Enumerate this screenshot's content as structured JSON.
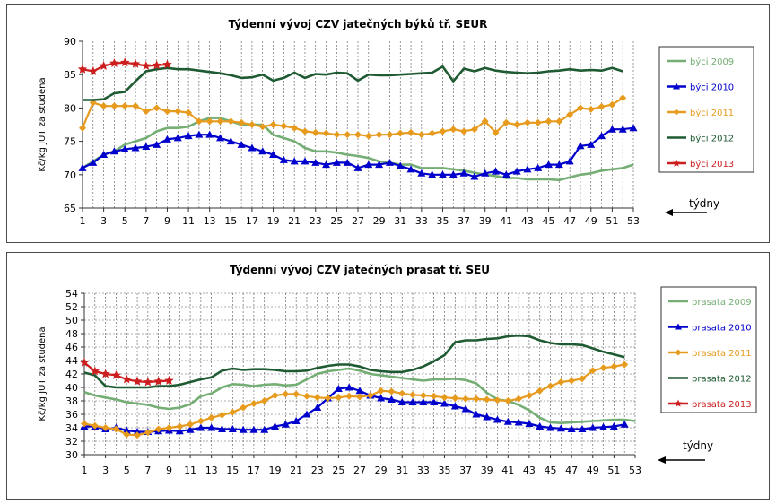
{
  "chart_data": [
    {
      "type": "line",
      "title": "Týdenní vývoj CZV jatečných býků tř. SEUR",
      "ylabel": "Kč/kg JUT za studena",
      "xlabel": "",
      "annotation": "týdny",
      "ylim": [
        65,
        90
      ],
      "yticks": [
        65,
        70,
        75,
        80,
        85,
        90
      ],
      "xlim": [
        1,
        53
      ],
      "xticks": [
        1,
        3,
        5,
        7,
        9,
        11,
        13,
        15,
        17,
        19,
        21,
        23,
        25,
        27,
        29,
        31,
        33,
        35,
        37,
        39,
        41,
        43,
        45,
        47,
        49,
        51,
        53
      ],
      "grid": "vertical dashed",
      "legend": "right",
      "series": [
        {
          "name": "býci 2009",
          "color": "#74ae74",
          "marker": "none",
          "values": [
            71,
            72,
            73,
            73.5,
            74.5,
            75,
            75.5,
            76.5,
            77,
            77,
            77.2,
            78,
            78.5,
            78.5,
            78,
            77.5,
            77.5,
            77.5,
            76,
            75.5,
            75,
            74,
            73.5,
            73.5,
            73.3,
            73,
            72.8,
            72.5,
            72,
            71.8,
            71.5,
            71.5,
            71,
            71,
            71,
            70.8,
            70.6,
            70.3,
            70,
            69.8,
            69.5,
            69.5,
            69.3,
            69.3,
            69.3,
            69.2,
            69.6,
            70,
            70.2,
            70.6,
            70.8,
            71,
            71.5
          ]
        },
        {
          "name": "býci 2010",
          "color": "#0000cc",
          "marker": "triangle",
          "values": [
            71,
            71.8,
            73,
            73.5,
            73.8,
            74,
            74.2,
            74.5,
            75.3,
            75.5,
            75.8,
            76,
            76,
            75.5,
            75,
            74.5,
            74,
            73.5,
            73,
            72.2,
            72,
            72,
            71.8,
            71.5,
            71.8,
            71.8,
            71,
            71.5,
            71.5,
            71.8,
            71.3,
            70.8,
            70.2,
            70,
            70,
            70,
            70.2,
            69.7,
            70.2,
            70.5,
            70,
            70.5,
            70.8,
            71,
            71.5,
            71.5,
            72,
            74.3,
            74.5,
            75.8,
            76.8,
            76.8,
            77
          ]
        },
        {
          "name": "býci 2011",
          "color": "#e69b1e",
          "marker": "diamond",
          "values": [
            77,
            80.8,
            80.3,
            80.3,
            80.3,
            80.3,
            79.5,
            80,
            79.5,
            79.5,
            79.3,
            78,
            78,
            78,
            78,
            77.8,
            77.5,
            77.2,
            77.5,
            77.3,
            77,
            76.5,
            76.3,
            76.2,
            76,
            76,
            76,
            75.8,
            76,
            76,
            76.2,
            76.3,
            76,
            76.2,
            76.5,
            76.8,
            76.5,
            76.8,
            78,
            76.3,
            77.8,
            77.5,
            77.8,
            77.8,
            78,
            78,
            79,
            80,
            79.8,
            80.2,
            80.5,
            81.5
          ]
        },
        {
          "name": "býci 2012",
          "color": "#1e5a32",
          "marker": "none",
          "values": [
            81.2,
            81.2,
            81.3,
            82.2,
            82.4,
            84,
            85.5,
            85.8,
            86,
            85.8,
            85.8,
            85.6,
            85.4,
            85.2,
            84.9,
            84.5,
            84.6,
            85,
            84.1,
            84.5,
            85.3,
            84.5,
            85.1,
            85,
            85.3,
            85.2,
            84.1,
            85,
            84.9,
            84.9,
            85,
            85.1,
            85.2,
            85.3,
            86.2,
            84,
            85.9,
            85.5,
            86,
            85.6,
            85.4,
            85.3,
            85.2,
            85.3,
            85.5,
            85.6,
            85.8,
            85.6,
            85.7,
            85.6,
            86,
            85.5
          ]
        },
        {
          "name": "býci 2013",
          "color": "#cc1e1e",
          "marker": "star",
          "values": [
            85.8,
            85.5,
            86.3,
            86.7,
            86.8,
            86.6,
            86.3,
            86.4,
            86.5
          ]
        }
      ]
    },
    {
      "type": "line",
      "title": "Týdenní vývoj CZV jatečných prasat tř. SEU",
      "ylabel": "Kč/kg JUT za studena",
      "xlabel": "",
      "annotation": "týdny",
      "ylim": [
        30,
        54
      ],
      "yticks": [
        30,
        32,
        34,
        36,
        38,
        40,
        42,
        44,
        46,
        48,
        50,
        52,
        54
      ],
      "xlim": [
        1,
        53
      ],
      "xticks": [
        1,
        3,
        5,
        7,
        9,
        11,
        13,
        15,
        17,
        19,
        21,
        23,
        25,
        27,
        29,
        31,
        33,
        35,
        37,
        39,
        41,
        43,
        45,
        47,
        49,
        51,
        53
      ],
      "grid": "both dashed",
      "legend": "right",
      "series": [
        {
          "name": "prasata 2009",
          "color": "#74ae74",
          "marker": "none",
          "values": [
            39.3,
            38.8,
            38.5,
            38.2,
            37.8,
            37.6,
            37.4,
            37.0,
            36.8,
            37.0,
            37.5,
            38.7,
            39.1,
            40.0,
            40.5,
            40.4,
            40.2,
            40.4,
            40.5,
            40.3,
            40.4,
            41.2,
            42.0,
            42.4,
            42.6,
            42.8,
            42.5,
            42.0,
            41.8,
            41.6,
            41.4,
            41.2,
            41.0,
            41.2,
            41.2,
            41.3,
            41.1,
            40.6,
            39.2,
            38.2,
            38.0,
            37.4,
            36.6,
            35.5,
            34.8,
            34.7,
            34.8,
            34.9,
            35.0,
            35.1,
            35.2,
            35.2,
            35.0
          ]
        },
        {
          "name": "prasata 2010",
          "color": "#0000cc",
          "marker": "triangle",
          "values": [
            34.2,
            34.2,
            33.8,
            34.0,
            33.6,
            33.4,
            33.4,
            33.5,
            33.6,
            33.5,
            33.7,
            34.0,
            34.0,
            33.8,
            33.8,
            33.7,
            33.7,
            33.7,
            34.2,
            34.5,
            35.0,
            36.0,
            37.0,
            38.4,
            39.8,
            40.0,
            39.5,
            38.8,
            38.4,
            38.2,
            37.8,
            37.8,
            37.8,
            37.8,
            37.6,
            37.2,
            36.8,
            36.0,
            35.6,
            35.2,
            34.9,
            34.8,
            34.6,
            34.2,
            34.0,
            33.9,
            33.8,
            33.8,
            34.0,
            34.1,
            34.2,
            34.5
          ]
        },
        {
          "name": "prasata 2011",
          "color": "#e69b1e",
          "marker": "diamond",
          "values": [
            34.6,
            34.3,
            34.0,
            33.8,
            33.0,
            32.9,
            33.3,
            33.8,
            34.0,
            34.2,
            34.5,
            35.0,
            35.5,
            35.9,
            36.3,
            37.0,
            37.6,
            38.0,
            38.8,
            39.0,
            39.0,
            38.7,
            38.5,
            38.4,
            38.5,
            38.7,
            38.6,
            38.8,
            39.5,
            39.4,
            39.1,
            38.9,
            38.8,
            38.7,
            38.5,
            38.4,
            38.3,
            38.3,
            38.2,
            38.1,
            38.0,
            38.3,
            38.8,
            39.5,
            40.2,
            40.8,
            41.0,
            41.3,
            42.5,
            42.9,
            43.1,
            43.4
          ]
        },
        {
          "name": "prasata 2012",
          "color": "#1e5a32",
          "marker": "none",
          "values": [
            42.2,
            41.8,
            40.2,
            40.0,
            40.0,
            40.0,
            40.0,
            40.2,
            40.2,
            40.4,
            40.8,
            41.2,
            41.5,
            42.5,
            42.8,
            42.6,
            42.7,
            42.7,
            42.6,
            42.4,
            42.4,
            42.5,
            42.9,
            43.2,
            43.4,
            43.4,
            43.1,
            42.6,
            42.4,
            42.3,
            42.3,
            42.6,
            43.1,
            43.9,
            44.8,
            46.7,
            47.0,
            47.0,
            47.2,
            47.3,
            47.6,
            47.7,
            47.6,
            47.0,
            46.6,
            46.4,
            46.4,
            46.3,
            45.8,
            45.3,
            44.9,
            44.5
          ]
        },
        {
          "name": "prasata 2013",
          "color": "#cc1e1e",
          "marker": "star",
          "values": [
            43.7,
            42.4,
            42.0,
            41.8,
            41.2,
            40.9,
            40.8,
            40.9,
            41.0
          ]
        }
      ]
    }
  ]
}
